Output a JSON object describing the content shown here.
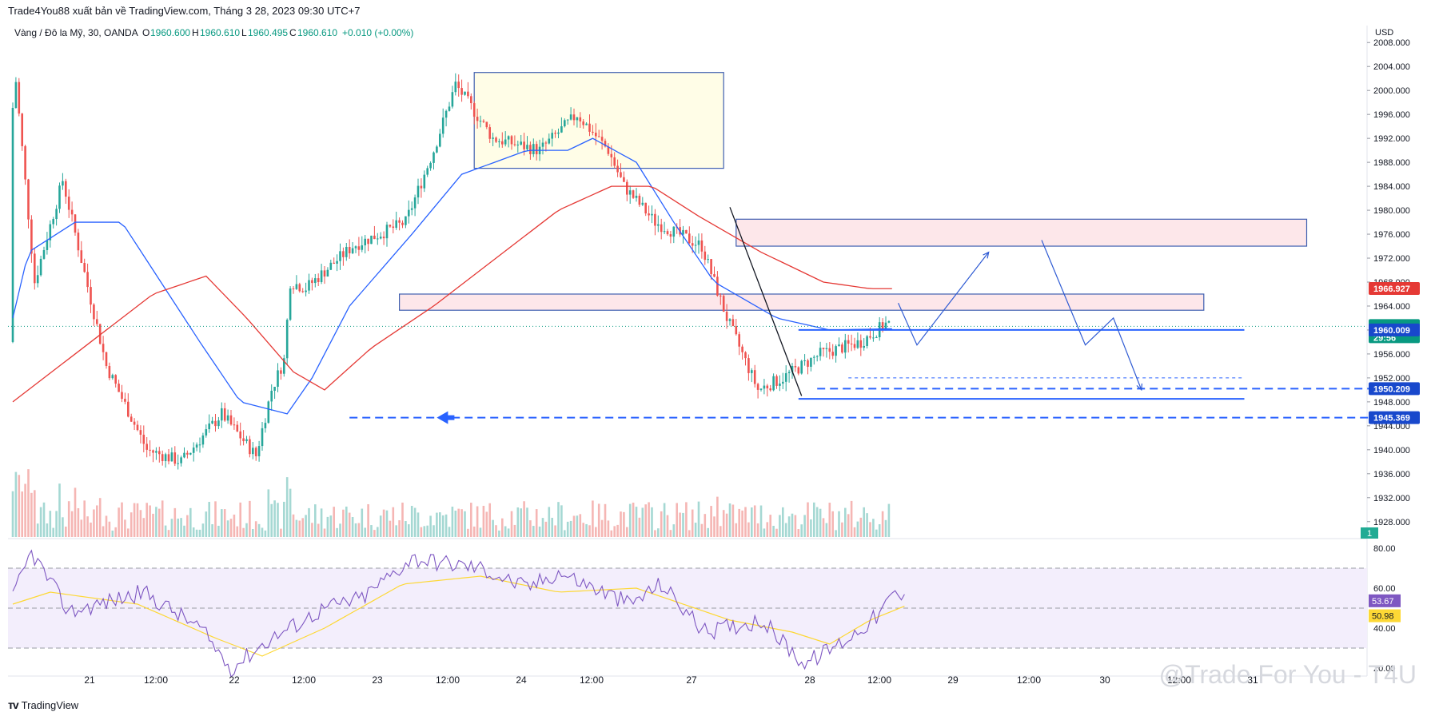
{
  "publish_text": "Trade4You88 xuất bản về TradingView.com, Tháng 3 28, 2023 09:30 UTC+7",
  "symbol_line": {
    "name": "Vàng / Đô la Mỹ, 30, OANDA",
    "o_label": "O",
    "o_value": "1960.600",
    "h_label": "H",
    "h_value": "1960.610",
    "l_label": "L",
    "l_value": "1960.495",
    "c_label": "C",
    "c_value": "1960.610",
    "change": "+0.010 (+0.00%)"
  },
  "logo_text": "TradingView",
  "watermark": "@Trade For You - T4U",
  "colors": {
    "up": "#26a69a",
    "down": "#ef5350",
    "ema_fast": "#2962ff",
    "ema_slow": "#e53935",
    "zone_yellow": "#fffde7",
    "zone_pink": "#fde7ea",
    "rsi_line": "#7e57c2",
    "rsi_ma": "#fdd835",
    "level_blue": "#2962ff",
    "tag_green": "#089981"
  },
  "chart_data": [
    {
      "type": "candlestick",
      "title": "Vàng / Đô la Mỹ, 30, OANDA",
      "currency_label": "USD",
      "ylim": [
        1926.5,
        2009.5
      ],
      "y_ticks": [
        "2008.000",
        "2004.000",
        "2000.000",
        "1996.000",
        "1992.000",
        "1988.000",
        "1984.000",
        "1980.000",
        "1976.000",
        "1972.000",
        "1968.000",
        "1964.000",
        "1960.000",
        "1956.000",
        "1952.000",
        "1948.000",
        "1944.000",
        "1940.000",
        "1936.000",
        "1932.000",
        "1928.000"
      ],
      "x_ticks": [
        "21",
        "12:00",
        "22",
        "12:00",
        "23",
        "12:00",
        "24",
        "12:00",
        "27",
        "28",
        "12:00",
        "29",
        "12:00",
        "30",
        "12:00",
        "31"
      ],
      "anchors": [
        [
          1958.0,
          0.0
        ],
        [
          1966,
          0.3
        ],
        [
          2006,
          1.2
        ],
        [
          1968,
          8.0
        ],
        [
          1985,
          17.0
        ],
        [
          1954,
          31.0
        ],
        [
          1940,
          44.0
        ],
        [
          1938,
          55.0
        ],
        [
          1946,
          68.0
        ],
        [
          1939,
          79.0
        ],
        [
          1950,
          84.0
        ],
        [
          1955,
          88.0
        ],
        [
          1968,
          90.0
        ],
        [
          1967,
          95.0
        ],
        [
          1974,
          110.0
        ],
        [
          1978,
          127.0
        ],
        [
          1990,
          136.0
        ],
        [
          2001,
          143.0
        ],
        [
          1992,
          155.0
        ],
        [
          1990,
          170.0
        ],
        [
          1996,
          182.0
        ],
        [
          1990,
          192.0
        ],
        [
          1984,
          197.0
        ],
        [
          1978,
          207.0
        ],
        [
          1974,
          222.0
        ],
        [
          1962,
          230.0
        ],
        [
          1950,
          240.0
        ],
        [
          1952,
          248.0
        ],
        [
          1956,
          260.0
        ],
        [
          1958,
          273.0
        ],
        [
          1961,
          281.0
        ]
      ],
      "ema_fast_anchors": [
        [
          1962,
          0.0
        ],
        [
          1973,
          5.0
        ],
        [
          1978,
          20.0
        ],
        [
          1978,
          35.0
        ],
        [
          1970,
          45.0
        ],
        [
          1958,
          60.0
        ],
        [
          1948,
          73.0
        ],
        [
          1946,
          88.0
        ],
        [
          1952,
          96.0
        ],
        [
          1964,
          108.0
        ],
        [
          1976,
          128.0
        ],
        [
          1986,
          144.0
        ],
        [
          1990,
          165.0
        ],
        [
          1990,
          178.0
        ],
        [
          1992,
          186.0
        ],
        [
          1988,
          200.0
        ],
        [
          1978,
          212.0
        ],
        [
          1968,
          225.0
        ],
        [
          1962,
          245.0
        ],
        [
          1960,
          262.0
        ],
        [
          1960.2,
          281.0
        ]
      ],
      "ema_slow_anchors": [
        [
          1948,
          0.0
        ],
        [
          1956,
          20.0
        ],
        [
          1966,
          45.0
        ],
        [
          1969,
          62.0
        ],
        [
          1962,
          75.0
        ],
        [
          1953,
          90.0
        ],
        [
          1950,
          100.0
        ],
        [
          1957,
          115.0
        ],
        [
          1964,
          135.0
        ],
        [
          1972,
          155.0
        ],
        [
          1980,
          175.0
        ],
        [
          1984,
          192.0
        ],
        [
          1984,
          205.0
        ],
        [
          1979,
          220.0
        ],
        [
          1973,
          240.0
        ],
        [
          1968,
          260.0
        ],
        [
          1966.9,
          275.0
        ]
      ],
      "candle_count": 282,
      "zones": [
        {
          "name": "zone-top-range",
          "high": 2003.0,
          "low": 1987.0,
          "from": 148.0,
          "to": 228.0,
          "fill": "yellow"
        },
        {
          "name": "zone-resistance-upper",
          "high": 1978.5,
          "low": 1974.0,
          "from": 232.0,
          "to": 415.0,
          "fill": "pink"
        },
        {
          "name": "zone-resistance-mid",
          "high": 1966.0,
          "low": 1963.3,
          "from": 124.0,
          "to": 382.0,
          "fill": "pink"
        }
      ],
      "levels": [
        {
          "name": "level-1960",
          "price": 1960.009,
          "label": "1960.009",
          "from": 252.0,
          "to": 395.0,
          "style": "solid",
          "axis_tag": true
        },
        {
          "name": "level-1948",
          "price": 1948.5,
          "from": 252.0,
          "to": 395.0,
          "style": "solid",
          "axis_tag": false
        },
        {
          "name": "level-1950",
          "price": 1950.209,
          "label": "1950.209",
          "from": 258.0,
          "to": 440.0,
          "style": "dashed",
          "axis_tag": true
        },
        {
          "name": "level-1945",
          "price": 1945.369,
          "label": "1945.369",
          "from": 108.0,
          "to": 440.0,
          "style": "dashed",
          "axis_tag": true
        },
        {
          "name": "level-1952",
          "price": 1952.0,
          "from": 268.0,
          "to": 395.0,
          "style": "thin-dashed",
          "axis_tag": false
        }
      ],
      "current_price": {
        "value": 1960.61,
        "label": "1960.610",
        "countdown": "29:56"
      },
      "ema_slow_tag": {
        "value": 1966.927,
        "label": "1966.927"
      },
      "volume_tag": "1",
      "projection_paths": [
        {
          "name": "projection-up-path",
          "points": [
            [
              284.0,
              1964.5
            ],
            [
              290.0,
              1957.5
            ],
            [
              313.0,
              1973.0
            ]
          ],
          "arrow": true
        },
        {
          "name": "projection-down-path",
          "points": [
            [
              330.0,
              1975.0
            ],
            [
              344.0,
              1957.5
            ],
            [
              353.0,
              1962.0
            ],
            [
              362.0,
              1950.0
            ]
          ],
          "arrow": true
        }
      ],
      "trend_line": {
        "name": "trend-drop-line",
        "from": [
          230.0,
          1980.5
        ],
        "to": [
          253.0,
          1949.0
        ]
      },
      "entry_arrow": {
        "name": "entry-arrow",
        "price": 1945.369,
        "at": 136.0
      }
    },
    {
      "type": "line",
      "title": "RSI",
      "ylim": [
        16,
        84
      ],
      "y_ticks": [
        "80.00",
        "60.00",
        "40.00",
        "20.00"
      ],
      "band_upper": 70,
      "band_lower": 30,
      "mid": 50,
      "rsi_anchors": [
        [
          55.0,
          0.0
        ],
        [
          78,
          6.0
        ],
        [
          48,
          18.0
        ],
        [
          58,
          42.0
        ],
        [
          40,
          60.0
        ],
        [
          20,
          70.0
        ],
        [
          34,
          82.0
        ],
        [
          50,
          100.0
        ],
        [
          55,
          112.0
        ],
        [
          75,
          128.0
        ],
        [
          70,
          150.0
        ],
        [
          60,
          165.0
        ],
        [
          68,
          175.0
        ],
        [
          52,
          198.0
        ],
        [
          62,
          208.0
        ],
        [
          38,
          222.0
        ],
        [
          44,
          240.0
        ],
        [
          22,
          254.0
        ],
        [
          35,
          268.0
        ],
        [
          47,
          278.0
        ],
        [
          58,
          283.0
        ],
        [
          53.67,
          286.0
        ]
      ],
      "ma_anchors": [
        [
          52.0,
          0.0
        ],
        [
          58,
          12.0
        ],
        [
          52,
          40.0
        ],
        [
          35,
          65.0
        ],
        [
          26,
          80.0
        ],
        [
          40,
          100.0
        ],
        [
          62,
          125.0
        ],
        [
          66,
          150.0
        ],
        [
          58,
          175.0
        ],
        [
          60,
          200.0
        ],
        [
          44,
          230.0
        ],
        [
          38,
          250.0
        ],
        [
          32,
          262.0
        ],
        [
          44,
          275.0
        ],
        [
          50.98,
          286.0
        ]
      ],
      "rsi_tag": "53.67",
      "ma_tag": "50.98"
    }
  ]
}
